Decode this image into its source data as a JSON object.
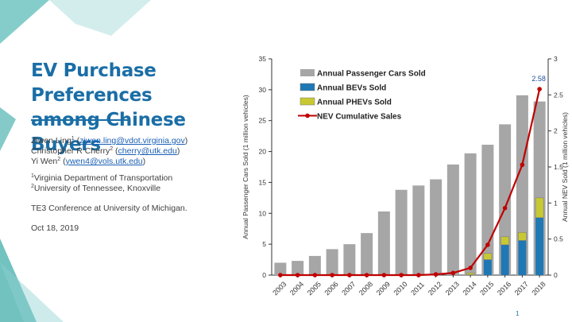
{
  "slide": {
    "title_line1": "EV Purchase Preferences",
    "title_line2": "among Chinese Buyers",
    "authors": [
      {
        "name": "Ziwen Ling",
        "sup": "1",
        "email": "ziwen.ling@vdot.virginia.gov"
      },
      {
        "name": "Christopher R Cherry",
        "sup": "2",
        "email": "cherry@utk.edu"
      },
      {
        "name": "Yi Wen",
        "sup": "2",
        "email": "ywen4@vols.utk.edu"
      }
    ],
    "affiliations": [
      {
        "sup": "1",
        "text": "Virginia Department of Transportation"
      },
      {
        "sup": "2",
        "text": "University of Tennessee, Knoxville"
      }
    ],
    "conference": "TE3 Conference at University of Michigan.",
    "date": "Oct 18, 2019",
    "page_number": "1"
  },
  "colors": {
    "accent": "#1a6ea6",
    "teal": "#4fb3b0",
    "cars_bar": "#a6a6a6",
    "bev_bar": "#1f78b4",
    "phev_bar": "#c8c832",
    "nev_line": "#c00000"
  },
  "chart_data": {
    "type": "bar",
    "categories": [
      "2003",
      "2004",
      "2005",
      "2006",
      "2007",
      "2008",
      "2009",
      "2010",
      "2011",
      "2012",
      "2013",
      "2014",
      "2015",
      "2016",
      "2017",
      "2018"
    ],
    "series": [
      {
        "name": "Annual Passenger Cars Sold",
        "type": "bar",
        "axis": "left",
        "values": [
          2.0,
          2.3,
          3.1,
          4.2,
          5.0,
          6.8,
          10.3,
          13.8,
          14.5,
          15.5,
          17.9,
          19.7,
          21.1,
          24.4,
          29.1,
          28.1
        ]
      },
      {
        "name": "Annual BEVs Sold",
        "type": "stacked-bar",
        "axis": "left",
        "values": [
          0,
          0,
          0,
          0,
          0,
          0,
          0,
          0,
          0,
          0,
          0.01,
          0.05,
          2.5,
          4.9,
          5.6,
          9.3
        ]
      },
      {
        "name": "Annual PHEVs Sold",
        "type": "stacked-bar",
        "axis": "left",
        "values": [
          0,
          0,
          0,
          0,
          0,
          0,
          0,
          0,
          0,
          0,
          0,
          0.3,
          1.0,
          1.3,
          1.3,
          3.2
        ]
      },
      {
        "name": "NEV Cumulative Sales",
        "type": "line",
        "axis": "right",
        "values": [
          0,
          0,
          0,
          0,
          0,
          0,
          0,
          0,
          0,
          0.01,
          0.03,
          0.1,
          0.42,
          0.93,
          1.53,
          2.58
        ]
      }
    ],
    "ylabel": "Annual Passenger Cars Sold (1 million vehicles)",
    "y2label": "Annual NEV Sold (1 million vehicles)",
    "ylim": [
      0,
      35
    ],
    "yticks": [
      0,
      5,
      10,
      15,
      20,
      25,
      30,
      35
    ],
    "y2lim": [
      0,
      3
    ],
    "y2ticks": [
      0,
      0.5,
      1,
      1.5,
      2,
      2.5,
      3
    ],
    "annotation": {
      "text": "2.58",
      "series": "NEV Cumulative Sales",
      "category": "2018"
    },
    "legend_position": "top-left inside plot",
    "grid": false
  }
}
